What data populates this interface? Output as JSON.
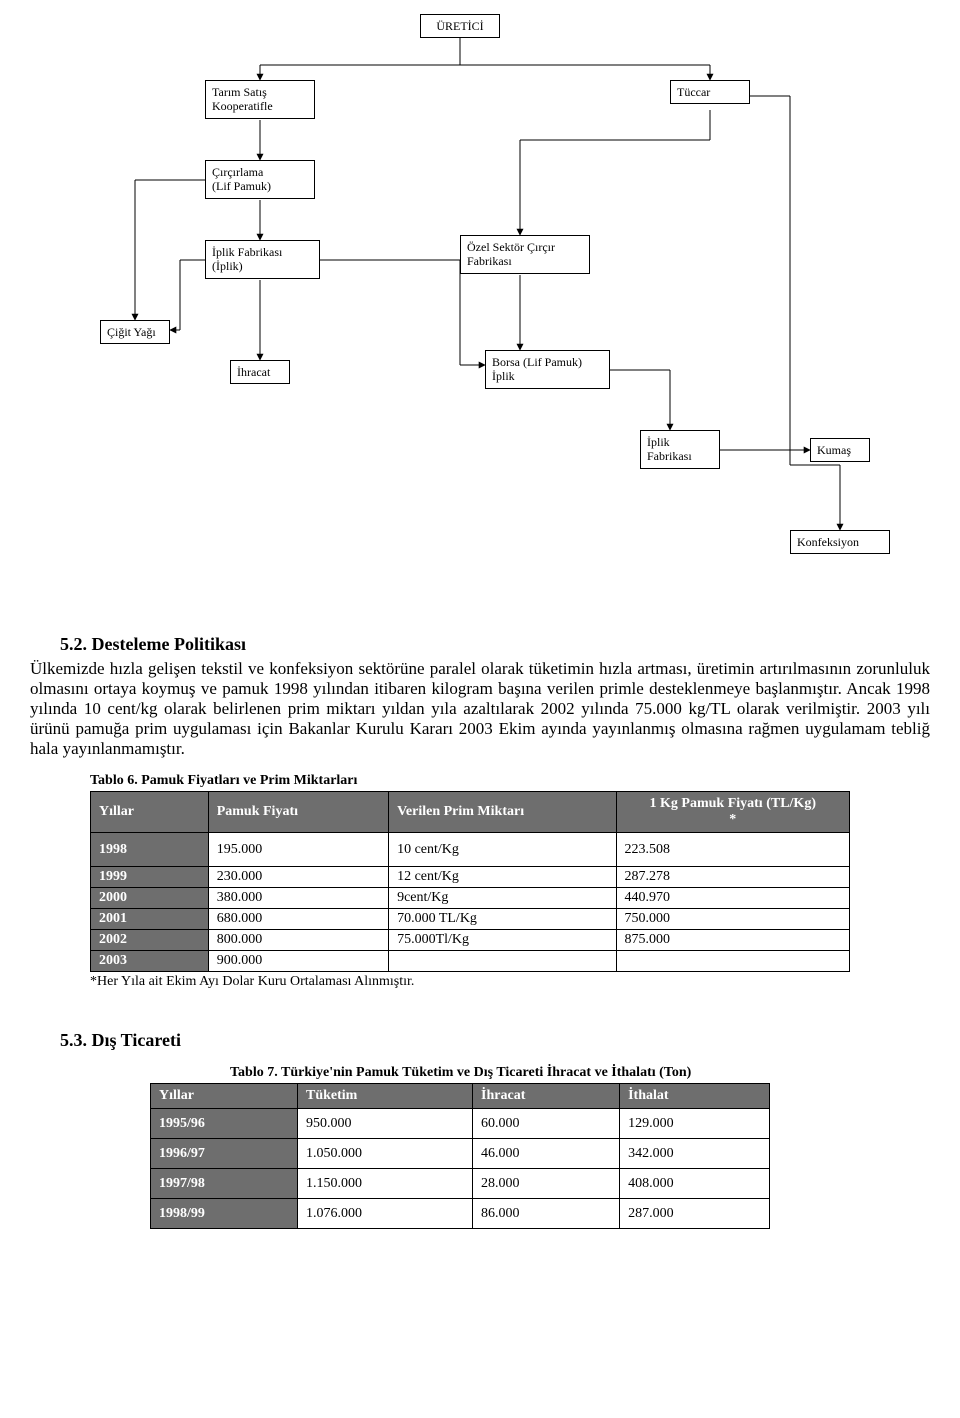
{
  "diagram": {
    "nodes": {
      "uretici": "ÜRETİCİ",
      "tarim_satis": "Tarım Satış\nKooperatifle",
      "tuccar": "Tüccar",
      "circirlama": "Çırçırlama\n(Lif Pamuk)",
      "iplik_fab1": "İplik Fabrikası\n(İplik)",
      "ozel_sektor": "Özel Sektör Çırçır\nFabrikası",
      "cigit_yag": "Çiğit Yağı",
      "ihracat": "İhracat",
      "borsa": "Borsa (Lif Pamuk)\nİplik",
      "iplik_fab2": "İplik\nFabrikası",
      "kumas": "Kumaş",
      "konfeksiyon": "Konfeksiyon"
    }
  },
  "section_5_2": {
    "heading": "5.2. Desteleme Politikası",
    "body": "Ülkemizde hızla gelişen tekstil ve konfeksiyon sektörüne paralel olarak tüketimin hızla artması, üretimin artırılmasının zorunluluk olmasını ortaya koymuş ve pamuk 1998 yılından itibaren kilogram başına verilen primle desteklenmeye başlanmıştır. Ancak 1998 yılında 10 cent/kg olarak belirlenen prim miktarı yıldan yıla azaltılarak 2002 yılında 75.000 kg/TL olarak verilmiştir. 2003 yılı ürünü pamuğa prim uygulaması için Bakanlar Kurulu Kararı 2003 Ekim ayında yayınlanmış olmasına rağmen uygulamam tebliğ hala yayınlanmamıştır."
  },
  "table6": {
    "caption": "Tablo 6. Pamuk Fiyatları ve Prim Miktarları",
    "headers": [
      "Yıllar",
      "Pamuk Fiyatı",
      "Verilen Prim Miktarı",
      "1 Kg Pamuk Fiyatı (TL/Kg)\n*"
    ],
    "rows": [
      [
        "1998",
        "195.000",
        "10 cent/Kg",
        "223.508"
      ],
      [
        "1999",
        "230.000",
        "12 cent/Kg",
        "287.278"
      ],
      [
        "2000",
        "380.000",
        "9cent/Kg",
        "440.970"
      ],
      [
        "2001",
        "680.000",
        "70.000 TL/Kg",
        "750.000"
      ],
      [
        "2002",
        "800.000",
        "75.000Tl/Kg",
        "875.000"
      ],
      [
        "2003",
        "900.000",
        "",
        ""
      ]
    ],
    "footnote": "*Her Yıla ait Ekim Ayı Dolar Kuru Ortalaması Alınmıştır."
  },
  "section_5_3": {
    "heading": "5.3. Dış Ticareti"
  },
  "table7": {
    "caption": "Tablo 7. Türkiye'nin Pamuk Tüketim ve Dış Ticareti İhracat ve İthalatı (Ton)",
    "headers": [
      "Yıllar",
      "Tüketim",
      "İhracat",
      "İthalat"
    ],
    "rows": [
      [
        "1995/96",
        "950.000",
        "60.000",
        "129.000"
      ],
      [
        "1996/97",
        "1.050.000",
        "46.000",
        "342.000"
      ],
      [
        "1997/98",
        "1.150.000",
        "28.000",
        "408.000"
      ],
      [
        "1998/99",
        "1.076.000",
        "86.000",
        "287.000"
      ]
    ]
  }
}
